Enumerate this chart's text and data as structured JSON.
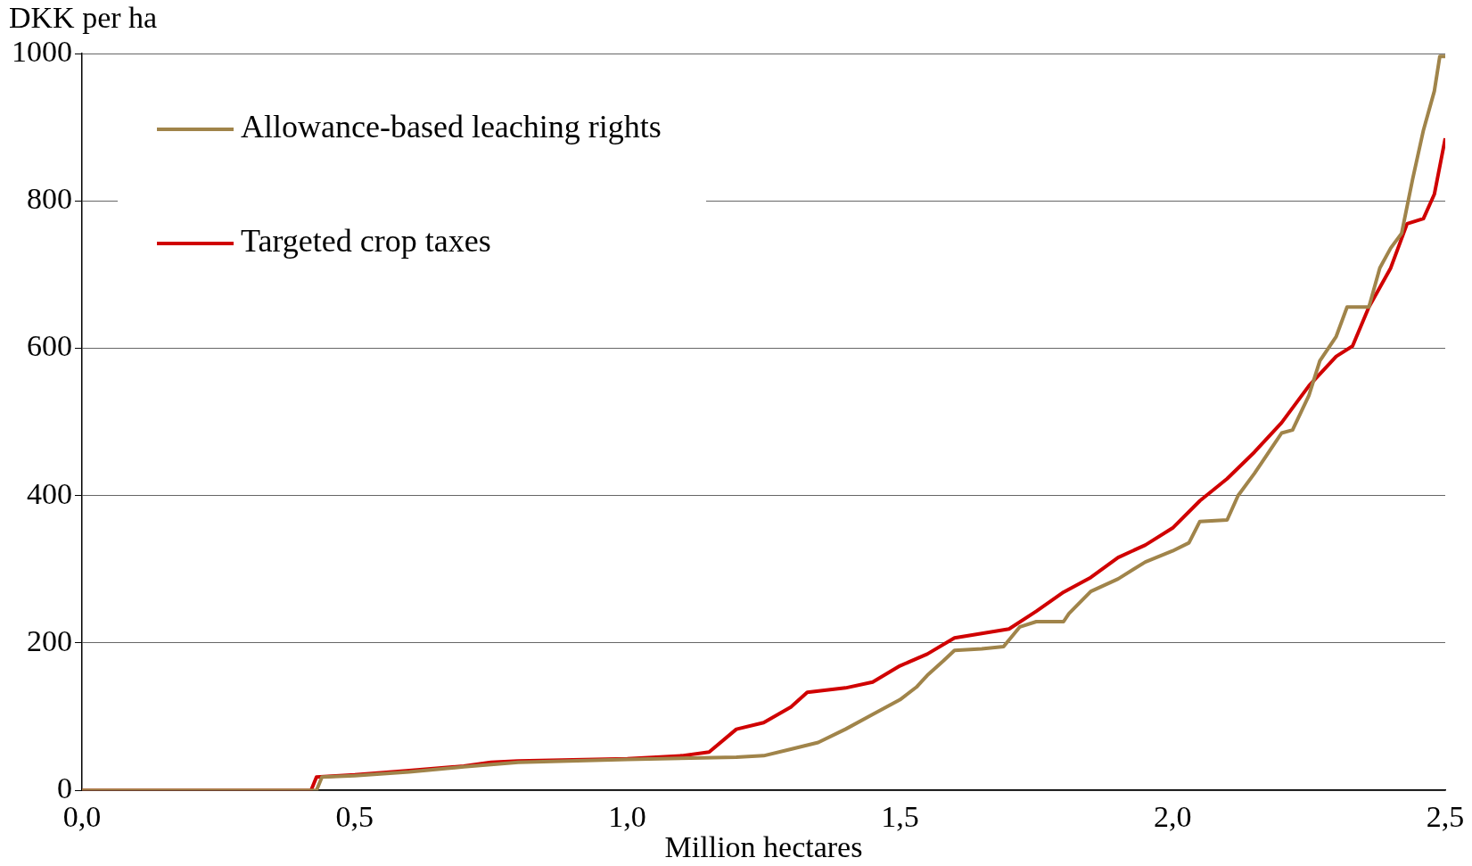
{
  "chart_data": {
    "type": "line",
    "xlabel": "Million hectares",
    "ylabel": "DKK per ha",
    "xlim": [
      0,
      2.5
    ],
    "xticks": [
      {
        "value": 0,
        "label": "0,0"
      },
      {
        "value": 0.5,
        "label": "0,5"
      },
      {
        "value": 1,
        "label": "1,0"
      },
      {
        "value": 1.5,
        "label": "1,5"
      },
      {
        "value": 2,
        "label": "2,0"
      },
      {
        "value": 2.5,
        "label": "2,5"
      }
    ],
    "ylim": [
      0,
      1000
    ],
    "yticks": [
      0,
      200,
      400,
      600,
      800,
      1000
    ],
    "grid": "y",
    "legend": "top left",
    "marker": "none",
    "line_style": "solid",
    "series": [
      {
        "name": "Allowance-based leaching rights",
        "color": "#a0844a",
        "x": [
          0,
          0.43,
          0.44,
          0.5,
          0.6,
          0.7,
          0.8,
          1.0,
          1.2,
          1.25,
          1.3,
          1.35,
          1.4,
          1.45,
          1.5,
          1.53,
          1.55,
          1.58,
          1.6,
          1.65,
          1.69,
          1.72,
          1.75,
          1.8,
          1.81,
          1.85,
          1.9,
          1.95,
          2.0,
          2.03,
          2.05,
          2.1,
          2.12,
          2.15,
          2.18,
          2.2,
          2.22,
          2.25,
          2.27,
          2.3,
          2.32,
          2.36,
          2.38,
          2.4,
          2.42,
          2.44,
          2.46,
          2.48,
          2.49,
          2.5
        ],
        "values": [
          0,
          0,
          18,
          20,
          25,
          32,
          38,
          42,
          45,
          47,
          56,
          65,
          83,
          103,
          123,
          140,
          156,
          176,
          190,
          192,
          195,
          222,
          229,
          229,
          240,
          270,
          287,
          310,
          325,
          336,
          365,
          367,
          400,
          430,
          463,
          485,
          489,
          536,
          583,
          616,
          656,
          656,
          709,
          736,
          756,
          829,
          896,
          949,
          996,
          996
        ]
      },
      {
        "name": "Targeted crop taxes",
        "color": "#d00000",
        "x": [
          0,
          0.42,
          0.43,
          0.5,
          0.6,
          0.7,
          0.75,
          0.8,
          1.0,
          1.1,
          1.15,
          1.2,
          1.25,
          1.3,
          1.33,
          1.4,
          1.45,
          1.5,
          1.55,
          1.6,
          1.65,
          1.7,
          1.75,
          1.8,
          1.85,
          1.9,
          1.95,
          2.0,
          2.05,
          2.1,
          2.15,
          2.2,
          2.25,
          2.3,
          2.33,
          2.36,
          2.4,
          2.43,
          2.46,
          2.48,
          2.5
        ],
        "values": [
          0,
          0,
          18,
          21,
          27,
          33,
          38,
          40,
          43,
          47,
          52,
          83,
          92,
          113,
          133,
          139,
          147,
          169,
          185,
          207,
          213,
          219,
          243,
          269,
          289,
          316,
          333,
          356,
          393,
          423,
          459,
          499,
          549,
          589,
          603,
          656,
          709,
          769,
          776,
          809,
          885
        ]
      }
    ]
  }
}
